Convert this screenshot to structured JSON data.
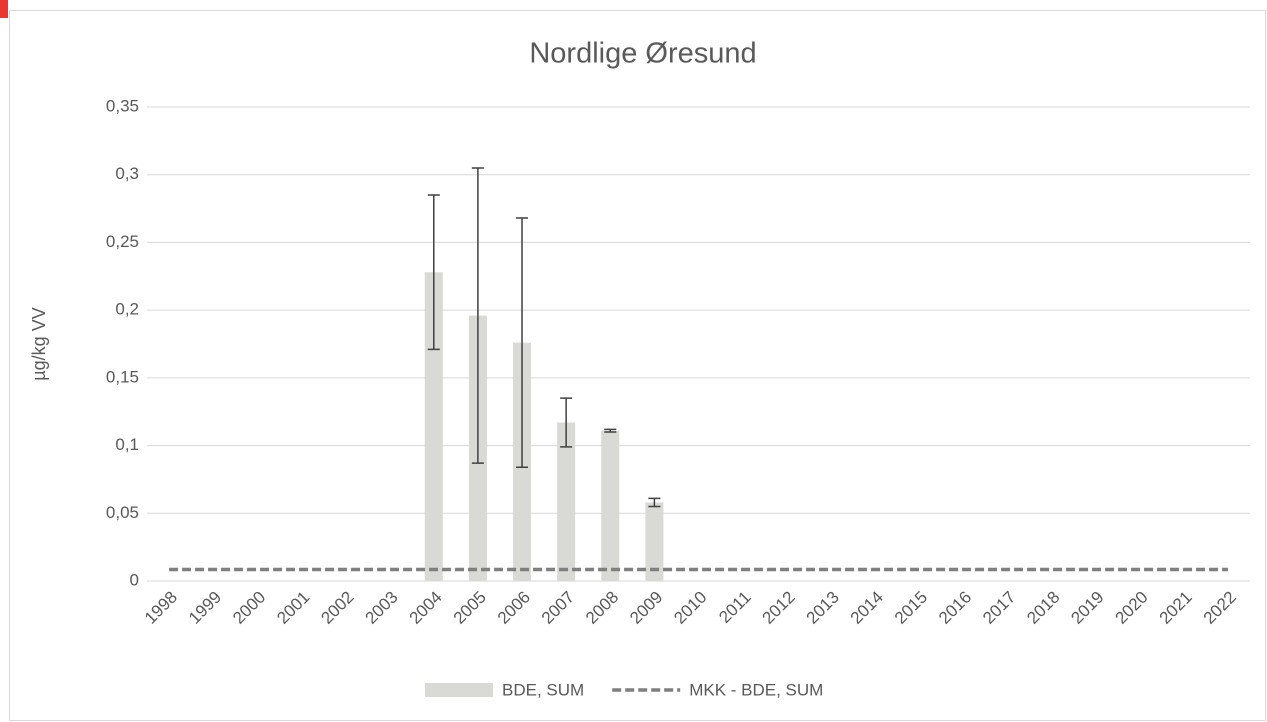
{
  "chart_data": {
    "type": "bar",
    "title": "Nordlige Øresund",
    "ylabel": "µg/kg VV",
    "categories": [
      "1998",
      "1999",
      "2000",
      "2001",
      "2002",
      "2003",
      "2004",
      "2005",
      "2006",
      "2007",
      "2008",
      "2009",
      "2010",
      "2011",
      "2012",
      "2013",
      "2014",
      "2015",
      "2016",
      "2017",
      "2018",
      "2019",
      "2020",
      "2021",
      "2022"
    ],
    "series": [
      {
        "name": "BDE, SUM",
        "type": "bar",
        "color": "#d9d9d6",
        "values": [
          null,
          null,
          null,
          null,
          null,
          null,
          0.228,
          0.196,
          0.176,
          0.117,
          0.111,
          0.058,
          null,
          null,
          null,
          null,
          null,
          null,
          null,
          null,
          null,
          null,
          null,
          null,
          null
        ],
        "errors": [
          null,
          null,
          null,
          null,
          null,
          null,
          0.057,
          0.109,
          0.092,
          0.018,
          0.001,
          0.003,
          null,
          null,
          null,
          null,
          null,
          null,
          null,
          null,
          null,
          null,
          null,
          null,
          null
        ],
        "error_color": "#404040"
      },
      {
        "name": "MKK - BDE, SUM",
        "type": "line",
        "color": "#7f7f7f",
        "dashed": true,
        "values": [
          0.0085,
          0.0085,
          0.0085,
          0.0085,
          0.0085,
          0.0085,
          0.0085,
          0.0085,
          0.0085,
          0.0085,
          0.0085,
          0.0085,
          0.0085,
          0.0085,
          0.0085,
          0.0085,
          0.0085,
          0.0085,
          0.0085,
          0.0085,
          0.0085,
          0.0085,
          0.0085,
          0.0085,
          0.0085
        ]
      }
    ],
    "ylim": [
      0,
      0.35
    ],
    "yticks": [
      0,
      {
        "value": 0.05,
        "label": "0,05"
      },
      {
        "value": 0.1,
        "label": "0,1"
      },
      {
        "value": 0.15,
        "label": "0,15"
      },
      {
        "value": 0.2,
        "label": "0,2"
      },
      {
        "value": 0.25,
        "label": "0,25"
      },
      {
        "value": 0.3,
        "label": "0,3"
      },
      {
        "value": 0.35,
        "label": "0,35"
      }
    ],
    "grid": true,
    "legend": "bottom"
  }
}
